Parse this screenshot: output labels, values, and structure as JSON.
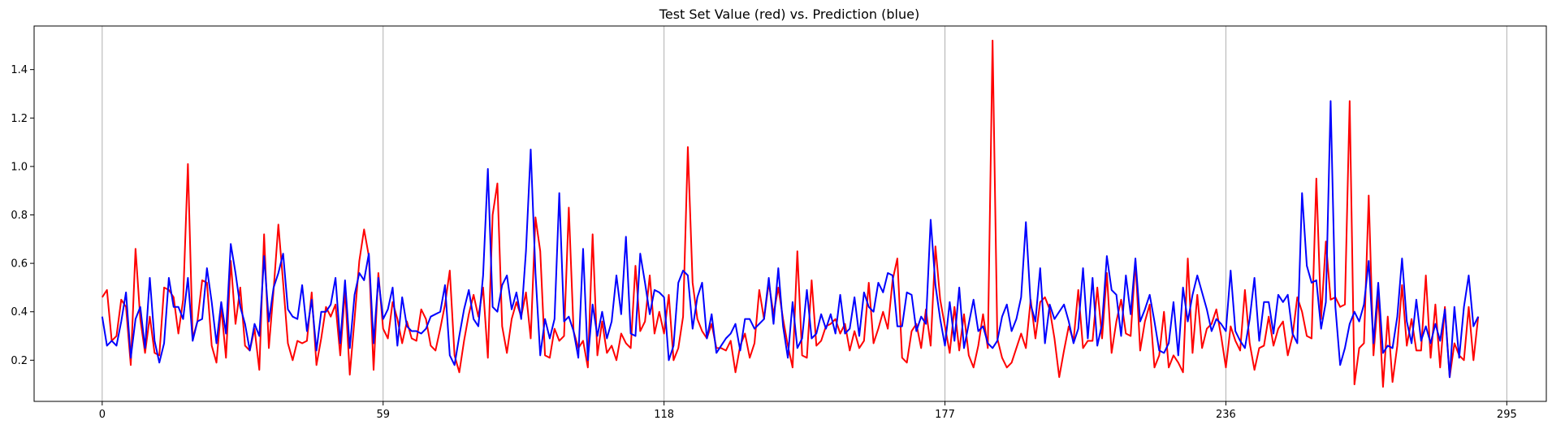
{
  "chart_data": {
    "type": "line",
    "title": "Test Set Value (red) vs. Prediction (blue)",
    "xlabel": "",
    "ylabel": "",
    "xlim": [
      -14.3,
      303.3
    ],
    "ylim": [
      0.03,
      1.58
    ],
    "grid": "x-only",
    "legend": "none",
    "x_ticks": [
      0,
      59,
      118,
      177,
      236,
      295
    ],
    "y_ticks": [
      0.2,
      0.4,
      0.6,
      0.8,
      1.0,
      1.2,
      1.4
    ],
    "y_tick_labels": [
      "0.2",
      "0.4",
      "0.6",
      "0.8",
      "1.0",
      "1.2",
      "1.4"
    ],
    "series": [
      {
        "color": "#ff0000",
        "values": [
          0.46,
          0.49,
          0.28,
          0.3,
          0.45,
          0.42,
          0.18,
          0.66,
          0.37,
          0.23,
          0.38,
          0.23,
          0.22,
          0.5,
          0.49,
          0.46,
          0.31,
          0.45,
          1.01,
          0.29,
          0.36,
          0.53,
          0.52,
          0.26,
          0.19,
          0.42,
          0.21,
          0.61,
          0.35,
          0.5,
          0.26,
          0.24,
          0.33,
          0.16,
          0.72,
          0.25,
          0.49,
          0.76,
          0.52,
          0.27,
          0.2,
          0.28,
          0.27,
          0.28,
          0.48,
          0.18,
          0.29,
          0.42,
          0.38,
          0.43,
          0.22,
          0.49,
          0.14,
          0.37,
          0.61,
          0.74,
          0.63,
          0.16,
          0.56,
          0.33,
          0.29,
          0.44,
          0.37,
          0.27,
          0.36,
          0.29,
          0.28,
          0.41,
          0.37,
          0.26,
          0.24,
          0.33,
          0.43,
          0.57,
          0.22,
          0.15,
          0.28,
          0.39,
          0.47,
          0.38,
          0.5,
          0.21,
          0.8,
          0.93,
          0.34,
          0.23,
          0.37,
          0.44,
          0.38,
          0.48,
          0.29,
          0.79,
          0.65,
          0.22,
          0.21,
          0.33,
          0.28,
          0.3,
          0.83,
          0.32,
          0.25,
          0.28,
          0.17,
          0.72,
          0.22,
          0.36,
          0.23,
          0.26,
          0.2,
          0.31,
          0.27,
          0.25,
          0.59,
          0.32,
          0.36,
          0.55,
          0.31,
          0.4,
          0.31,
          0.47,
          0.2,
          0.25,
          0.38,
          1.08,
          0.52,
          0.37,
          0.32,
          0.29,
          0.35,
          0.25,
          0.25,
          0.24,
          0.28,
          0.15,
          0.26,
          0.31,
          0.21,
          0.27,
          0.49,
          0.37,
          0.52,
          0.39,
          0.5,
          0.37,
          0.26,
          0.17,
          0.65,
          0.22,
          0.21,
          0.53,
          0.26,
          0.28,
          0.34,
          0.35,
          0.37,
          0.31,
          0.35,
          0.24,
          0.32,
          0.25,
          0.28,
          0.52,
          0.27,
          0.33,
          0.4,
          0.33,
          0.53,
          0.62,
          0.21,
          0.19,
          0.32,
          0.35,
          0.25,
          0.41,
          0.26,
          0.67,
          0.45,
          0.34,
          0.23,
          0.42,
          0.24,
          0.39,
          0.22,
          0.17,
          0.26,
          0.39,
          0.25,
          1.52,
          0.29,
          0.21,
          0.17,
          0.19,
          0.25,
          0.31,
          0.25,
          0.45,
          0.29,
          0.44,
          0.46,
          0.41,
          0.29,
          0.13,
          0.24,
          0.34,
          0.28,
          0.49,
          0.25,
          0.28,
          0.28,
          0.5,
          0.29,
          0.56,
          0.23,
          0.36,
          0.45,
          0.31,
          0.3,
          0.61,
          0.24,
          0.36,
          0.43,
          0.17,
          0.22,
          0.4,
          0.17,
          0.22,
          0.19,
          0.15,
          0.62,
          0.23,
          0.47,
          0.25,
          0.33,
          0.35,
          0.41,
          0.3,
          0.17,
          0.34,
          0.28,
          0.24,
          0.49,
          0.27,
          0.16,
          0.25,
          0.26,
          0.38,
          0.26,
          0.33,
          0.36,
          0.22,
          0.3,
          0.46,
          0.4,
          0.3,
          0.29,
          0.95,
          0.37,
          0.69,
          0.45,
          0.46,
          0.42,
          0.43,
          1.27,
          0.1,
          0.25,
          0.27,
          0.88,
          0.22,
          0.47,
          0.09,
          0.38,
          0.11,
          0.26,
          0.51,
          0.26,
          0.37,
          0.24,
          0.24,
          0.55,
          0.21,
          0.43,
          0.17,
          0.42,
          0.13,
          0.27,
          0.22,
          0.2,
          0.42,
          0.2,
          0.38
        ],
        "_note": ""
      },
      {
        "color": "#0000ff",
        "values": [
          0.38,
          0.26,
          0.28,
          0.26,
          0.36,
          0.48,
          0.21,
          0.37,
          0.42,
          0.25,
          0.54,
          0.28,
          0.19,
          0.27,
          0.54,
          0.42,
          0.42,
          0.37,
          0.54,
          0.28,
          0.36,
          0.37,
          0.58,
          0.44,
          0.27,
          0.44,
          0.31,
          0.68,
          0.56,
          0.42,
          0.35,
          0.24,
          0.35,
          0.3,
          0.63,
          0.36,
          0.5,
          0.56,
          0.64,
          0.41,
          0.38,
          0.37,
          0.51,
          0.32,
          0.45,
          0.24,
          0.4,
          0.4,
          0.43,
          0.54,
          0.27,
          0.53,
          0.25,
          0.47,
          0.56,
          0.53,
          0.64,
          0.27,
          0.54,
          0.37,
          0.41,
          0.5,
          0.26,
          0.46,
          0.34,
          0.32,
          0.32,
          0.31,
          0.33,
          0.38,
          0.39,
          0.4,
          0.51,
          0.22,
          0.18,
          0.3,
          0.41,
          0.49,
          0.37,
          0.34,
          0.55,
          0.99,
          0.42,
          0.4,
          0.51,
          0.55,
          0.41,
          0.48,
          0.37,
          0.65,
          1.07,
          0.56,
          0.22,
          0.37,
          0.29,
          0.37,
          0.89,
          0.36,
          0.38,
          0.32,
          0.21,
          0.66,
          0.2,
          0.43,
          0.3,
          0.4,
          0.29,
          0.36,
          0.55,
          0.39,
          0.71,
          0.31,
          0.3,
          0.64,
          0.52,
          0.39,
          0.49,
          0.48,
          0.46,
          0.2,
          0.26,
          0.52,
          0.57,
          0.55,
          0.33,
          0.46,
          0.52,
          0.29,
          0.39,
          0.23,
          0.26,
          0.29,
          0.31,
          0.35,
          0.24,
          0.37,
          0.37,
          0.33,
          0.35,
          0.37,
          0.54,
          0.35,
          0.58,
          0.34,
          0.21,
          0.44,
          0.25,
          0.29,
          0.49,
          0.29,
          0.31,
          0.39,
          0.33,
          0.39,
          0.31,
          0.47,
          0.31,
          0.33,
          0.46,
          0.3,
          0.48,
          0.42,
          0.4,
          0.52,
          0.48,
          0.56,
          0.55,
          0.34,
          0.34,
          0.48,
          0.47,
          0.32,
          0.38,
          0.35,
          0.78,
          0.51,
          0.37,
          0.26,
          0.44,
          0.28,
          0.5,
          0.25,
          0.35,
          0.45,
          0.32,
          0.34,
          0.27,
          0.25,
          0.28,
          0.38,
          0.43,
          0.32,
          0.37,
          0.46,
          0.77,
          0.43,
          0.36,
          0.58,
          0.27,
          0.43,
          0.37,
          0.4,
          0.43,
          0.36,
          0.27,
          0.33,
          0.58,
          0.29,
          0.54,
          0.26,
          0.35,
          0.63,
          0.49,
          0.47,
          0.3,
          0.55,
          0.39,
          0.62,
          0.36,
          0.41,
          0.47,
          0.36,
          0.24,
          0.23,
          0.27,
          0.44,
          0.22,
          0.5,
          0.36,
          0.47,
          0.55,
          0.48,
          0.41,
          0.32,
          0.37,
          0.35,
          0.32,
          0.57,
          0.32,
          0.28,
          0.25,
          0.37,
          0.54,
          0.28,
          0.44,
          0.44,
          0.31,
          0.47,
          0.44,
          0.47,
          0.31,
          0.27,
          0.89,
          0.59,
          0.52,
          0.53,
          0.33,
          0.44,
          1.27,
          0.42,
          0.18,
          0.25,
          0.35,
          0.4,
          0.36,
          0.43,
          0.61,
          0.27,
          0.52,
          0.23,
          0.26,
          0.25,
          0.38,
          0.62,
          0.36,
          0.27,
          0.45,
          0.28,
          0.34,
          0.27,
          0.35,
          0.28,
          0.41,
          0.13,
          0.42,
          0.21,
          0.42,
          0.55,
          0.34,
          0.38
        ]
      }
    ]
  }
}
